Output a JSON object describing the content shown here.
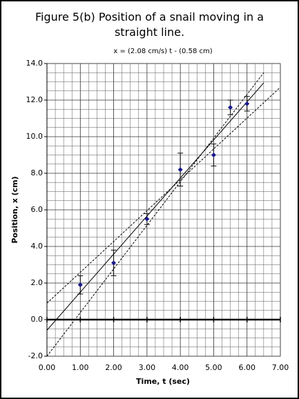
{
  "chart_data": {
    "type": "scatter",
    "title": "Figure 5(b) Position of a snail moving in a straight line.",
    "subtitle": "x = (2.08 cm/s) t - (0.58 cm)",
    "x_label": "Time, t (sec)",
    "y_label": "Position, x (cm)",
    "x": [
      1,
      2,
      3,
      4,
      5,
      5.5,
      6
    ],
    "values": [
      1.9,
      3.1,
      5.5,
      8.2,
      9.0,
      11.6,
      11.8
    ],
    "errors": [
      0.5,
      0.7,
      0.3,
      0.9,
      0.6,
      0.4,
      0.4
    ],
    "color": "#1a1a8c",
    "fit_lines": [
      {
        "x": [
          0,
          6.5
        ],
        "values": [
          -0.58,
          12.94
        ],
        "style": "solid"
      },
      {
        "x": [
          0,
          6.5
        ],
        "values": [
          -2.0,
          13.5
        ],
        "style": "dashed"
      },
      {
        "x": [
          0,
          7
        ],
        "values": [
          0.9,
          12.7
        ],
        "style": "dashed"
      }
    ],
    "xlim": [
      0,
      7
    ],
    "ylim": [
      -2,
      14
    ],
    "xticks": [
      {
        "value": 0,
        "label": "0.00"
      },
      {
        "value": 1,
        "label": "1.00"
      },
      {
        "value": 2,
        "label": "2.00"
      },
      {
        "value": 3,
        "label": "3.00"
      },
      {
        "value": 4,
        "label": "4.00"
      },
      {
        "value": 5,
        "label": "5.00"
      },
      {
        "value": 6,
        "label": "6.00"
      },
      {
        "value": 7,
        "label": "7.00"
      }
    ],
    "yticks": [
      {
        "value": -2,
        "label": "-2.0"
      },
      {
        "value": 0,
        "label": "0.0"
      },
      {
        "value": 2,
        "label": "2.0"
      },
      {
        "value": 4,
        "label": "4.0"
      },
      {
        "value": 6,
        "label": "6.0"
      },
      {
        "value": 8,
        "label": "8.0"
      },
      {
        "value": 10,
        "label": "10.0"
      },
      {
        "value": 12,
        "label": "12.0"
      },
      {
        "value": 14,
        "label": "14.0"
      }
    ],
    "grid": true
  }
}
